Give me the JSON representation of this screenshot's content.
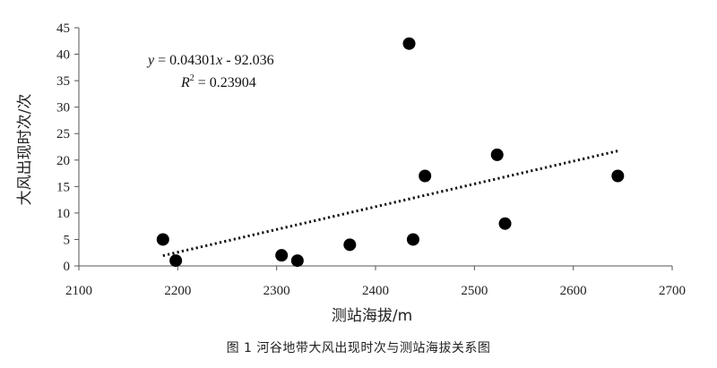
{
  "figure_caption": "图 1   河谷地带大风出现时次与测站海拔关系图",
  "chart_data": {
    "type": "scatter",
    "title": "",
    "xlabel": "测站海拔/m",
    "ylabel": "大风出现时次/次",
    "xlim": [
      2100,
      2700
    ],
    "ylim": [
      0,
      45
    ],
    "x_ticks": [
      2100,
      2200,
      2300,
      2400,
      2500,
      2600,
      2700
    ],
    "y_ticks": [
      0,
      5,
      10,
      15,
      20,
      25,
      30,
      35,
      40,
      45
    ],
    "grid": false,
    "points": [
      {
        "x": 2185,
        "y": 5
      },
      {
        "x": 2198,
        "y": 1
      },
      {
        "x": 2305,
        "y": 2
      },
      {
        "x": 2321,
        "y": 1
      },
      {
        "x": 2374,
        "y": 4
      },
      {
        "x": 2434,
        "y": 42
      },
      {
        "x": 2438,
        "y": 5
      },
      {
        "x": 2450,
        "y": 17
      },
      {
        "x": 2523,
        "y": 21
      },
      {
        "x": 2531,
        "y": 8
      },
      {
        "x": 2645,
        "y": 17
      }
    ],
    "trendline": {
      "type": "linear",
      "slope": 0.04301,
      "intercept": -92.036,
      "x_range": [
        2185,
        2645
      ],
      "style": "dotted"
    },
    "equation_text": {
      "line1_y": "y",
      "line1_rest": " = 0.04301",
      "line1_x": "x",
      "line1_tail": " - 92.036",
      "line2_R": "R",
      "line2_sup": "2",
      "line2_rest": " = 0.23904"
    }
  }
}
